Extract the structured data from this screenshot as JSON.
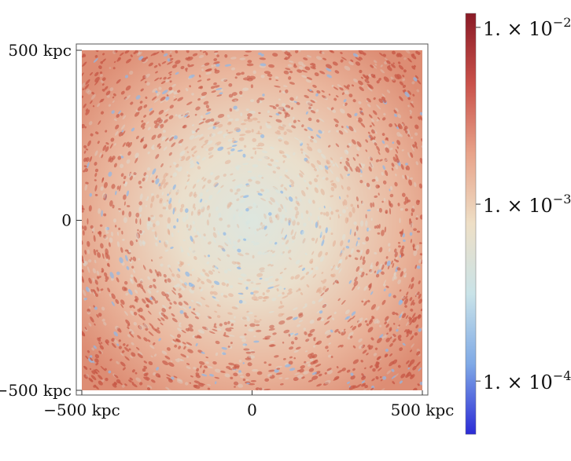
{
  "chart_data": {
    "type": "heatmap",
    "title": "",
    "xlabel": "",
    "ylabel": "",
    "x_ticks": [
      "−500 kpc",
      "0",
      "500 kpc"
    ],
    "y_ticks": [
      "500 kpc",
      "0",
      "−500 kpc"
    ],
    "x_range": [
      -500,
      500
    ],
    "y_range": [
      -500,
      500
    ],
    "units": "kpc",
    "grid": false,
    "colorbar": {
      "scale": "log",
      "range": [
        5e-05,
        0.012
      ],
      "ticks": [
        {
          "value": 0.01,
          "mantissa": "1.",
          "times": "×",
          "base": "10",
          "exp": "−2"
        },
        {
          "value": 0.001,
          "mantissa": "1.",
          "times": "×",
          "base": "10",
          "exp": "−3"
        },
        {
          "value": 0.0001,
          "mantissa": "1.",
          "times": "×",
          "base": "10",
          "exp": "−4"
        }
      ],
      "colors": [
        "#2b2bd6",
        "#7fa9e6",
        "#c9e3e8",
        "#eedfc6",
        "#e8a38a",
        "#c9514a",
        "#8a1a26"
      ],
      "placement": "right"
    },
    "field_description_values": {
      "center_level": 0.0008,
      "edge_level": 0.004
    }
  }
}
